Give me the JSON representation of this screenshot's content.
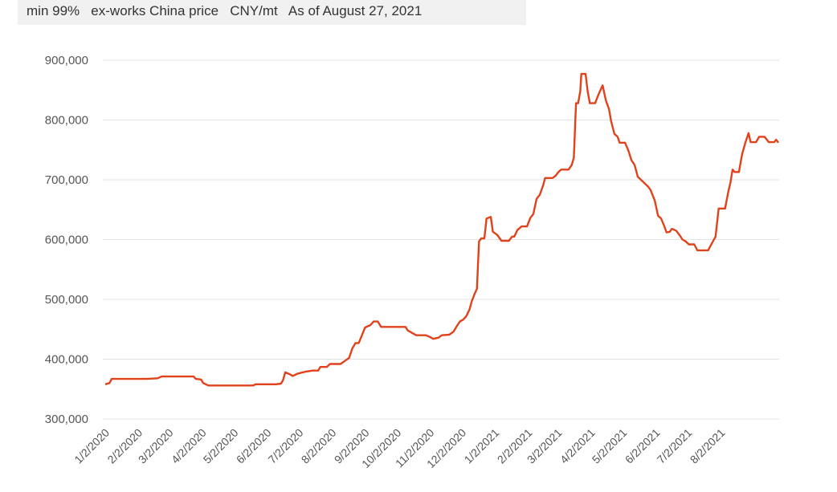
{
  "header": {
    "subtitle": "min 99%   ex-works China price   CNY/mt   As of August 27, 2021"
  },
  "chart_data": {
    "type": "line",
    "title": "",
    "subtitle": "min 99%   ex-works China price   CNY/mt   As of August 27, 2021",
    "xlabel": "",
    "ylabel": "",
    "ylim": [
      300000,
      900000
    ],
    "yticks": [
      300000,
      400000,
      500000,
      600000,
      700000,
      800000,
      900000
    ],
    "ytick_labels": [
      "300,000",
      "400,000",
      "500,000",
      "600,000",
      "700,000",
      "800,000",
      "900,000"
    ],
    "xtick_labels": [
      "1/2/2020",
      "2/2/2020",
      "3/2/2020",
      "4/2/2020",
      "5/2/2020",
      "6/2/2020",
      "7/2/2020",
      "8/2/2020",
      "9/2/2020",
      "10/2/2020",
      "11/2/2020",
      "12/2/2020",
      "1/2/2021",
      "2/2/2021",
      "3/2/2021",
      "4/2/2021",
      "5/2/2021",
      "6/2/2021",
      "7/2/2021",
      "8/2/2021"
    ],
    "grid": true,
    "legend": "none",
    "series": [
      {
        "color": "#e0421c",
        "points": [
          [
            "2020-01-02",
            358000
          ],
          [
            "2020-01-06",
            360000
          ],
          [
            "2020-01-08",
            367000
          ],
          [
            "2020-01-20",
            367000
          ],
          [
            "2020-02-10",
            367000
          ],
          [
            "2020-02-20",
            368000
          ],
          [
            "2020-02-24",
            371000
          ],
          [
            "2020-03-10",
            371000
          ],
          [
            "2020-03-25",
            371000
          ],
          [
            "2020-03-27",
            367000
          ],
          [
            "2020-04-01",
            366000
          ],
          [
            "2020-04-03",
            360000
          ],
          [
            "2020-04-08",
            356000
          ],
          [
            "2020-04-20",
            356000
          ],
          [
            "2020-05-10",
            356000
          ],
          [
            "2020-05-20",
            356000
          ],
          [
            "2020-05-22",
            358000
          ],
          [
            "2020-06-10",
            358000
          ],
          [
            "2020-06-15",
            359000
          ],
          [
            "2020-06-17",
            365000
          ],
          [
            "2020-06-19",
            378000
          ],
          [
            "2020-06-23",
            375000
          ],
          [
            "2020-06-26",
            372000
          ],
          [
            "2020-07-01",
            376000
          ],
          [
            "2020-07-08",
            379000
          ],
          [
            "2020-07-15",
            381000
          ],
          [
            "2020-07-20",
            381000
          ],
          [
            "2020-07-22",
            387000
          ],
          [
            "2020-07-28",
            387000
          ],
          [
            "2020-07-31",
            392000
          ],
          [
            "2020-08-10",
            392000
          ],
          [
            "2020-08-14",
            397000
          ],
          [
            "2020-08-18",
            402000
          ],
          [
            "2020-08-21",
            418000
          ],
          [
            "2020-08-24",
            427000
          ],
          [
            "2020-08-27",
            427000
          ],
          [
            "2020-08-30",
            440000
          ],
          [
            "2020-09-02",
            453000
          ],
          [
            "2020-09-07",
            457000
          ],
          [
            "2020-09-10",
            463000
          ],
          [
            "2020-09-14",
            463000
          ],
          [
            "2020-09-17",
            454000
          ],
          [
            "2020-09-25",
            454000
          ],
          [
            "2020-10-05",
            454000
          ],
          [
            "2020-10-10",
            454000
          ],
          [
            "2020-10-12",
            448000
          ],
          [
            "2020-10-16",
            444000
          ],
          [
            "2020-10-20",
            440000
          ],
          [
            "2020-10-29",
            440000
          ],
          [
            "2020-11-02",
            437000
          ],
          [
            "2020-11-05",
            434000
          ],
          [
            "2020-11-10",
            436000
          ],
          [
            "2020-11-13",
            440000
          ],
          [
            "2020-11-20",
            441000
          ],
          [
            "2020-11-24",
            446000
          ],
          [
            "2020-11-27",
            455000
          ],
          [
            "2020-11-30",
            463000
          ],
          [
            "2020-12-03",
            466000
          ],
          [
            "2020-12-06",
            472000
          ],
          [
            "2020-12-09",
            483000
          ],
          [
            "2020-12-11",
            496000
          ],
          [
            "2020-12-14",
            510000
          ],
          [
            "2020-12-16",
            518000
          ],
          [
            "2020-12-17",
            560000
          ],
          [
            "2020-12-18",
            597000
          ],
          [
            "2020-12-20",
            602000
          ],
          [
            "2020-12-23",
            602000
          ],
          [
            "2020-12-25",
            635000
          ],
          [
            "2020-12-29",
            638000
          ],
          [
            "2020-12-31",
            613000
          ],
          [
            "2021-01-04",
            608000
          ],
          [
            "2021-01-08",
            598000
          ],
          [
            "2021-01-15",
            598000
          ],
          [
            "2021-01-18",
            605000
          ],
          [
            "2021-01-20",
            605000
          ],
          [
            "2021-01-23",
            616000
          ],
          [
            "2021-01-27",
            622000
          ],
          [
            "2021-02-01",
            622000
          ],
          [
            "2021-02-04",
            636000
          ],
          [
            "2021-02-07",
            643000
          ],
          [
            "2021-02-10",
            668000
          ],
          [
            "2021-02-13",
            675000
          ],
          [
            "2021-02-16",
            690000
          ],
          [
            "2021-02-18",
            703000
          ],
          [
            "2021-02-25",
            703000
          ],
          [
            "2021-02-28",
            707000
          ],
          [
            "2021-03-02",
            712000
          ],
          [
            "2021-03-05",
            717000
          ],
          [
            "2021-03-12",
            717000
          ],
          [
            "2021-03-15",
            725000
          ],
          [
            "2021-03-17",
            737000
          ],
          [
            "2021-03-19",
            828000
          ],
          [
            "2021-03-21",
            828000
          ],
          [
            "2021-03-23",
            848000
          ],
          [
            "2021-03-24",
            877000
          ],
          [
            "2021-03-28",
            877000
          ],
          [
            "2021-03-30",
            847000
          ],
          [
            "2021-04-01",
            828000
          ],
          [
            "2021-04-06",
            828000
          ],
          [
            "2021-04-09",
            842000
          ],
          [
            "2021-04-13",
            858000
          ],
          [
            "2021-04-16",
            833000
          ],
          [
            "2021-04-19",
            818000
          ],
          [
            "2021-04-21",
            798000
          ],
          [
            "2021-04-24",
            777000
          ],
          [
            "2021-04-27",
            772000
          ],
          [
            "2021-04-29",
            762000
          ],
          [
            "2021-05-04",
            762000
          ],
          [
            "2021-05-07",
            750000
          ],
          [
            "2021-05-10",
            733000
          ],
          [
            "2021-05-13",
            725000
          ],
          [
            "2021-05-16",
            705000
          ],
          [
            "2021-05-19",
            700000
          ],
          [
            "2021-05-22",
            695000
          ],
          [
            "2021-05-26",
            688000
          ],
          [
            "2021-05-28",
            683000
          ],
          [
            "2021-06-01",
            665000
          ],
          [
            "2021-06-04",
            640000
          ],
          [
            "2021-06-07",
            635000
          ],
          [
            "2021-06-10",
            622000
          ],
          [
            "2021-06-12",
            612000
          ],
          [
            "2021-06-15",
            613000
          ],
          [
            "2021-06-17",
            618000
          ],
          [
            "2021-06-21",
            615000
          ],
          [
            "2021-06-24",
            608000
          ],
          [
            "2021-06-27",
            600000
          ],
          [
            "2021-06-30",
            597000
          ],
          [
            "2021-07-03",
            592000
          ],
          [
            "2021-07-08",
            592000
          ],
          [
            "2021-07-11",
            582000
          ],
          [
            "2021-07-21",
            582000
          ],
          [
            "2021-07-25",
            595000
          ],
          [
            "2021-07-28",
            605000
          ],
          [
            "2021-07-31",
            652000
          ],
          [
            "2021-08-06",
            652000
          ],
          [
            "2021-08-09",
            680000
          ],
          [
            "2021-08-11",
            695000
          ],
          [
            "2021-08-13",
            717000
          ],
          [
            "2021-08-15",
            713000
          ],
          [
            "2021-08-19",
            713000
          ],
          [
            "2021-08-22",
            743000
          ],
          [
            "2021-08-25",
            762000
          ],
          [
            "2021-08-28",
            778000
          ],
          [
            "2021-08-30",
            763000
          ],
          [
            "2021-09-04",
            763000
          ],
          [
            "2021-09-07",
            772000
          ],
          [
            "2021-09-12",
            772000
          ],
          [
            "2021-09-16",
            763000
          ],
          [
            "2021-09-21",
            763000
          ],
          [
            "2021-09-23",
            767000
          ],
          [
            "2021-09-25",
            762000
          ]
        ]
      }
    ]
  }
}
